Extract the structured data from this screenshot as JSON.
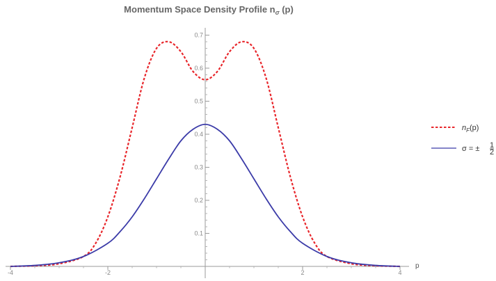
{
  "chart_data": {
    "type": "line",
    "title": "Momentum Space Density Profile n",
    "title_sub": "σ",
    "title_suffix": " (p)",
    "xlabel": "p",
    "ylabel": "",
    "xlim": [
      -4,
      4
    ],
    "ylim": [
      0,
      0.72
    ],
    "x_ticks": [
      -4,
      -2,
      2,
      4
    ],
    "x_tick_labels": [
      "-4",
      "-2",
      "2",
      "4"
    ],
    "y_ticks": [
      0.1,
      0.2,
      0.3,
      0.4,
      0.5,
      0.6,
      0.7
    ],
    "y_tick_labels": [
      "0.1",
      "0.2",
      "0.3",
      "0.4",
      "0.5",
      "0.6",
      "0.7"
    ],
    "grid": false,
    "legend_position": "right",
    "series": [
      {
        "name": "nF(p)",
        "legend_main": "n",
        "legend_sub": "F",
        "legend_suffix": "(p)",
        "color": "#e8262b",
        "style": "dashed",
        "x": [
          -4,
          -3.5,
          -3,
          -2.5,
          -2.25,
          -2,
          -1.75,
          -1.5,
          -1.25,
          -1,
          -0.75,
          -0.5,
          -0.25,
          0,
          0.25,
          0.5,
          0.75,
          1,
          1.25,
          1.5,
          1.75,
          2,
          2.25,
          2.5,
          3,
          3.5,
          4
        ],
        "y": [
          0.0,
          0.002,
          0.008,
          0.03,
          0.07,
          0.15,
          0.27,
          0.42,
          0.57,
          0.66,
          0.68,
          0.65,
          0.59,
          0.565,
          0.59,
          0.65,
          0.68,
          0.66,
          0.57,
          0.42,
          0.27,
          0.15,
          0.07,
          0.03,
          0.008,
          0.002,
          0.0
        ]
      },
      {
        "name": "σ = ±1/2",
        "legend_main": "σ = ±",
        "legend_frac_num": "1",
        "legend_frac_den": "2",
        "color": "#3b3ba8",
        "style": "solid",
        "x": [
          -4,
          -3.5,
          -3,
          -2.5,
          -2,
          -1.75,
          -1.5,
          -1.25,
          -1,
          -0.75,
          -0.5,
          -0.25,
          0,
          0.25,
          0.5,
          0.75,
          1,
          1.25,
          1.5,
          1.75,
          2,
          2.5,
          3,
          3.5,
          4
        ],
        "y": [
          0.0,
          0.003,
          0.011,
          0.03,
          0.07,
          0.105,
          0.15,
          0.205,
          0.265,
          0.325,
          0.38,
          0.415,
          0.43,
          0.415,
          0.38,
          0.325,
          0.265,
          0.205,
          0.15,
          0.105,
          0.07,
          0.03,
          0.011,
          0.003,
          0.0
        ]
      }
    ]
  }
}
